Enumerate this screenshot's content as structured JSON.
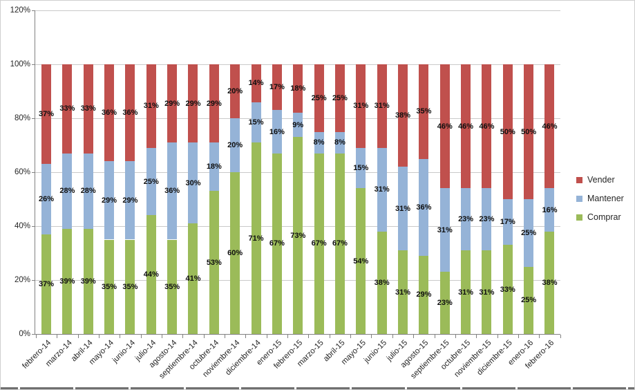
{
  "chart_data": {
    "type": "bar",
    "stacked": true,
    "orientation": "vertical",
    "title": "",
    "categories": [
      "febrero-14",
      "marzo-14",
      "abril-14",
      "mayo-14",
      "junio-14",
      "julio-14",
      "agosto-14",
      "septiembre-14",
      "octubre-14",
      "noviembre-14",
      "diciembre-14",
      "enero-15",
      "febrero-15",
      "marzo-15",
      "abril-15",
      "mayo-15",
      "junio-15",
      "julio-15",
      "agosto-15",
      "septiembre-15",
      "octubre-15",
      "noviembre-15",
      "diciembre-15",
      "enero-16",
      "febrero-16"
    ],
    "series": [
      {
        "name": "Comprar",
        "color": "#9bbb59",
        "values": [
          37,
          39,
          39,
          35,
          35,
          44,
          35,
          41,
          53,
          60,
          71,
          67,
          73,
          67,
          67,
          54,
          38,
          31,
          29,
          23,
          31,
          31,
          33,
          25,
          38
        ]
      },
      {
        "name": "Mantener",
        "color": "#95b3d7",
        "values": [
          26,
          28,
          28,
          29,
          29,
          25,
          36,
          30,
          18,
          20,
          15,
          16,
          9,
          8,
          8,
          15,
          31,
          31,
          36,
          31,
          23,
          23,
          17,
          25,
          16
        ]
      },
      {
        "name": "Vender",
        "color": "#c0504d",
        "values": [
          37,
          33,
          33,
          36,
          36,
          31,
          29,
          29,
          29,
          20,
          14,
          17,
          18,
          25,
          25,
          31,
          31,
          38,
          35,
          46,
          46,
          46,
          50,
          50,
          46
        ]
      }
    ],
    "data_labels": true,
    "label_suffix": "%",
    "y_axis": {
      "min": 0,
      "max": 120,
      "step": 20,
      "tick_labels": [
        "0%",
        "20%",
        "40%",
        "60%",
        "80%",
        "100%",
        "120%"
      ],
      "grid": true
    },
    "legend": {
      "position": "right",
      "entries": [
        {
          "label": "Vender",
          "color": "#c0504d"
        },
        {
          "label": "Mantener",
          "color": "#95b3d7"
        },
        {
          "label": "Comprar",
          "color": "#9bbb59"
        }
      ]
    }
  },
  "colors": {
    "background": "#ffffff",
    "gridline": "#c9c9c9",
    "axis": "#808080",
    "text": "#262626",
    "data_label": "#0d0d0d",
    "table_strip": "#6f6f6f"
  }
}
